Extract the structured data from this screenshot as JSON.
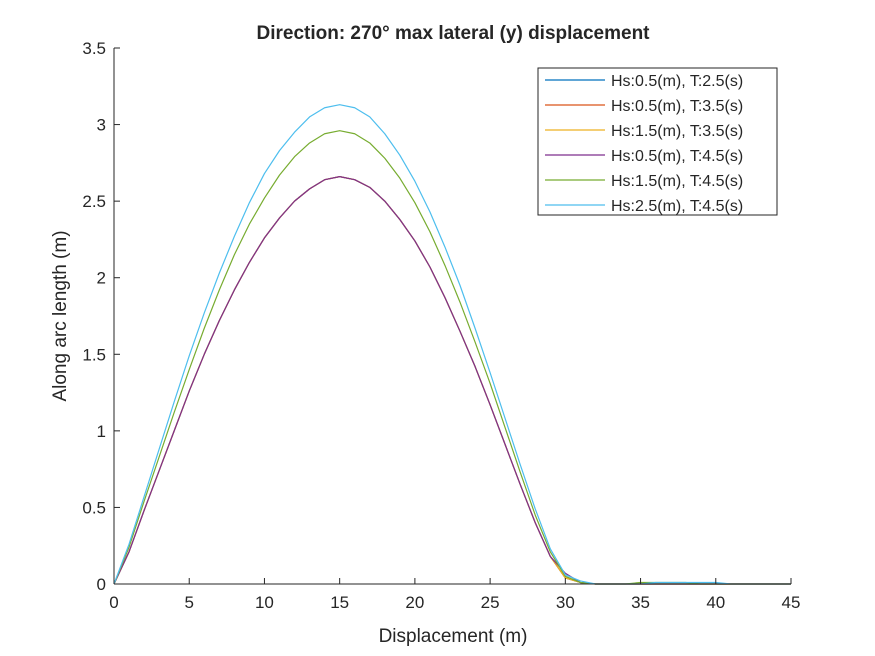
{
  "chart_data": {
    "type": "line",
    "title": "Direction: 270° max lateral (y) displacement",
    "xlabel": "Displacement (m)",
    "ylabel": "Along arc length (m)",
    "xlim": [
      0,
      45
    ],
    "ylim": [
      0,
      3.5
    ],
    "x_ticks": [
      0,
      5,
      10,
      15,
      20,
      25,
      30,
      35,
      40,
      45
    ],
    "y_ticks": [
      0,
      0.5,
      1,
      1.5,
      2,
      2.5,
      3,
      3.5
    ],
    "x_tick_labels": [
      "0",
      "5",
      "10",
      "15",
      "20",
      "25",
      "30",
      "35",
      "40",
      "45"
    ],
    "y_tick_labels": [
      "0",
      "0.5",
      "1",
      "1.5",
      "2",
      "2.5",
      "3",
      "3.5"
    ],
    "grid": false,
    "legend_position": "top-right",
    "x": [
      0,
      1,
      2,
      3,
      4,
      5,
      6,
      7,
      8,
      9,
      10,
      11,
      12,
      13,
      14,
      15,
      16,
      17,
      18,
      19,
      20,
      21,
      22,
      23,
      24,
      25,
      26,
      27,
      28,
      29,
      30,
      31,
      32,
      33,
      34,
      35,
      36,
      37,
      38,
      39,
      40,
      41,
      42,
      43,
      44,
      45
    ],
    "series": [
      {
        "name": "Hs:0.5(m), T:2.5(s)",
        "color": "#0072bd",
        "values": [
          0,
          0.21,
          0.48,
          0.74,
          1.0,
          1.26,
          1.5,
          1.72,
          1.92,
          2.1,
          2.26,
          2.39,
          2.5,
          2.58,
          2.64,
          2.66,
          2.64,
          2.59,
          2.5,
          2.38,
          2.24,
          2.07,
          1.87,
          1.65,
          1.42,
          1.17,
          0.91,
          0.65,
          0.4,
          0.18,
          0.04,
          0.01,
          0.0,
          0.0,
          0.0,
          0.0,
          0.0,
          0.0,
          0.0,
          0.0,
          0.0,
          0.0,
          0.0,
          0.0,
          0.0,
          0.0
        ]
      },
      {
        "name": "Hs:0.5(m), T:3.5(s)",
        "color": "#d95319",
        "values": [
          0,
          0.21,
          0.48,
          0.74,
          1.0,
          1.26,
          1.5,
          1.72,
          1.92,
          2.1,
          2.26,
          2.39,
          2.5,
          2.58,
          2.64,
          2.66,
          2.64,
          2.59,
          2.5,
          2.38,
          2.24,
          2.07,
          1.87,
          1.65,
          1.42,
          1.17,
          0.91,
          0.65,
          0.4,
          0.18,
          0.04,
          0.01,
          0.0,
          0.0,
          0.0,
          0.0,
          0.0,
          0.0,
          0.0,
          0.0,
          0.0,
          0.0,
          0.0,
          0.0,
          0.0,
          0.0
        ]
      },
      {
        "name": "Hs:1.5(m), T:3.5(s)",
        "color": "#edb120",
        "values": [
          0,
          0.21,
          0.48,
          0.74,
          1.0,
          1.26,
          1.5,
          1.72,
          1.92,
          2.1,
          2.26,
          2.39,
          2.5,
          2.58,
          2.64,
          2.66,
          2.64,
          2.59,
          2.5,
          2.38,
          2.24,
          2.07,
          1.87,
          1.65,
          1.42,
          1.17,
          0.91,
          0.65,
          0.4,
          0.18,
          0.04,
          0.01,
          0.0,
          0.0,
          0.0,
          0.0,
          0.0,
          0.0,
          0.0,
          0.0,
          0.0,
          0.0,
          0.0,
          0.0,
          0.0,
          0.0
        ]
      },
      {
        "name": "Hs:0.5(m), T:4.5(s)",
        "color": "#7e2f8e",
        "values": [
          0,
          0.21,
          0.48,
          0.74,
          1.0,
          1.26,
          1.5,
          1.72,
          1.92,
          2.1,
          2.26,
          2.39,
          2.5,
          2.58,
          2.64,
          2.66,
          2.64,
          2.59,
          2.5,
          2.38,
          2.24,
          2.07,
          1.87,
          1.65,
          1.42,
          1.17,
          0.91,
          0.65,
          0.4,
          0.18,
          0.07,
          0.01,
          0.0,
          0.0,
          0.0,
          0.0,
          0.0,
          0.0,
          0.0,
          0.0,
          0.0,
          0.0,
          0.0,
          0.0,
          0.0,
          0.0
        ]
      },
      {
        "name": "Hs:1.5(m), T:4.5(s)",
        "color": "#77ac30",
        "values": [
          0,
          0.24,
          0.54,
          0.83,
          1.12,
          1.4,
          1.67,
          1.92,
          2.15,
          2.35,
          2.52,
          2.67,
          2.79,
          2.88,
          2.94,
          2.96,
          2.94,
          2.88,
          2.78,
          2.65,
          2.49,
          2.3,
          2.08,
          1.84,
          1.58,
          1.31,
          1.02,
          0.73,
          0.45,
          0.21,
          0.05,
          0.01,
          0.0,
          0.0,
          0.0,
          0.01,
          0.01,
          0.01,
          0.01,
          0.0,
          0.0,
          0.0,
          0.0,
          0.0,
          0.0,
          0.0
        ]
      },
      {
        "name": "Hs:2.5(m), T:4.5(s)",
        "color": "#4dbeee",
        "values": [
          0,
          0.26,
          0.57,
          0.88,
          1.19,
          1.49,
          1.77,
          2.03,
          2.27,
          2.49,
          2.68,
          2.83,
          2.95,
          3.05,
          3.11,
          3.13,
          3.11,
          3.05,
          2.94,
          2.8,
          2.63,
          2.43,
          2.2,
          1.95,
          1.67,
          1.38,
          1.08,
          0.78,
          0.49,
          0.23,
          0.06,
          0.02,
          0.0,
          0.0,
          0.0,
          0.0,
          0.01,
          0.01,
          0.01,
          0.01,
          0.01,
          0.0,
          0.0,
          0.0,
          0.0,
          0.0
        ]
      }
    ]
  }
}
